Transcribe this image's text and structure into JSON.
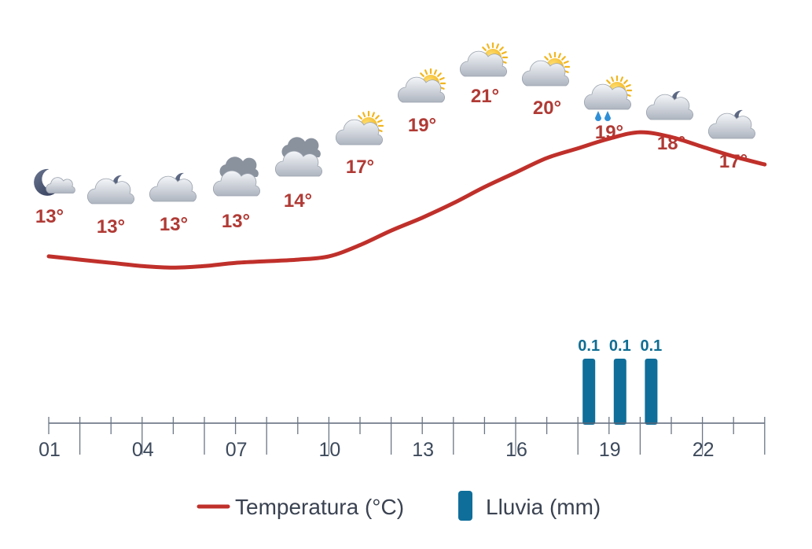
{
  "chart_data": {
    "type": "line",
    "x": [
      "01",
      "02",
      "03",
      "04",
      "05",
      "06",
      "07",
      "08",
      "09",
      "10",
      "11",
      "12",
      "13",
      "14",
      "15",
      "16",
      "17",
      "18",
      "19",
      "20",
      "21",
      "22",
      "23",
      "24"
    ],
    "x_tick_labels": [
      "01",
      "04",
      "07",
      "10",
      "13",
      "16",
      "19",
      "22"
    ],
    "series": [
      {
        "name": "Temperatura (°C)",
        "type": "line",
        "color": "#c0302b",
        "values": [
          13.1,
          12.9,
          12.7,
          12.5,
          12.4,
          12.5,
          12.7,
          12.8,
          12.9,
          13.1,
          13.8,
          14.7,
          15.5,
          16.4,
          17.4,
          18.3,
          19.2,
          19.8,
          20.4,
          20.8,
          20.5,
          19.9,
          19.3,
          18.8
        ]
      },
      {
        "name": "Lluvia (mm)",
        "type": "bar",
        "color": "#0f6e9a",
        "values": [
          0,
          0,
          0,
          0,
          0,
          0,
          0,
          0,
          0,
          0,
          0,
          0,
          0,
          0,
          0,
          0,
          0,
          0.1,
          0.1,
          0.1,
          0,
          0,
          0,
          0
        ]
      }
    ],
    "temp_labels": [
      "13°",
      "13°",
      "13°",
      "13°",
      "14°",
      "17°",
      "19°",
      "21°",
      "20°",
      "19°",
      "18°",
      "17°"
    ],
    "rain_labels": [
      "0.1",
      "0.1",
      "0.1"
    ],
    "icons": [
      "moon-cloud-icon",
      "moon-cloud-icon",
      "moon-cloud-icon",
      "cloud-icon",
      "cloud-icon",
      "sun-cloud-icon",
      "sun-cloud-icon",
      "sun-cloud-icon",
      "sun-cloud-icon",
      "sun-cloud-rain-icon",
      "moon-cloud-icon",
      "moon-cloud-icon"
    ],
    "legend": {
      "position": "bottom",
      "items": [
        {
          "label": "Temperatura (°C)",
          "marker": "line"
        },
        {
          "label": "Lluvia (mm)",
          "marker": "bar"
        }
      ]
    },
    "grid": false
  }
}
